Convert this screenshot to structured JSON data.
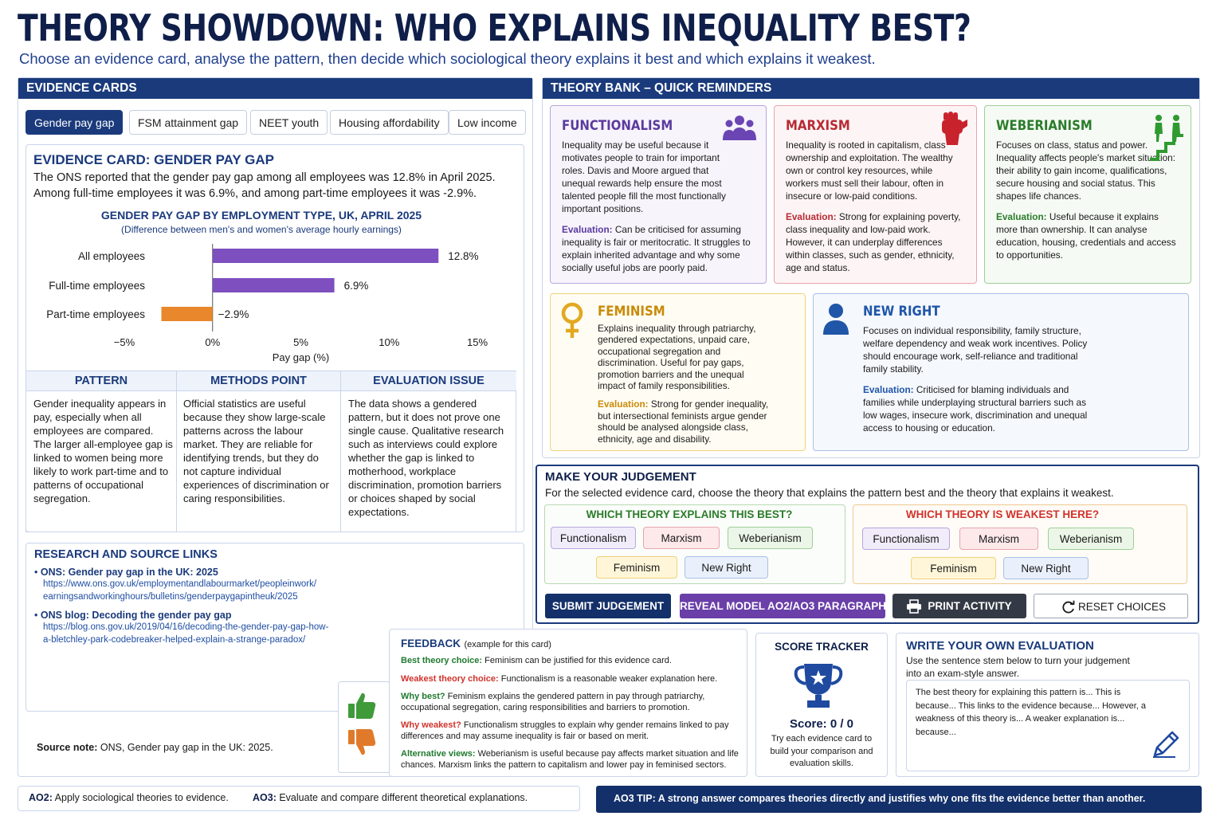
{
  "header": {
    "title": "THEORY SHOWDOWN: WHO EXPLAINS INEQUALITY BEST?",
    "subtitle": "Choose an evidence card, analyse the pattern, then decide which sociological theory explains it best and which explains it weakest."
  },
  "evidence": {
    "panel_title": "EVIDENCE CARDS",
    "tabs": [
      "Gender pay gap",
      "FSM attainment gap",
      "NEET youth",
      "Housing affordability",
      "Low income"
    ],
    "card_title": "EVIDENCE CARD: GENDER PAY GAP",
    "card_text_1": "The ONS reported that the gender pay gap among all employees was 12.8% in April 2025.",
    "card_text_2": "Among full-time employees it was 6.9%, and among part-time employees it was -2.9%.",
    "pattern_head": "PATTERN",
    "pattern_text": "Gender inequality appears in pay, especially when all employees are compared. The larger all-employee gap is linked to women being more likely to work part-time and to patterns of occupational segregation.",
    "methods_head": "METHODS POINT",
    "methods_text": "Official statistics are useful because they show large-scale patterns across the labour market. They are reliable for identifying trends, but they do not capture individual experiences of discrimination or caring responsibilities.",
    "evaluation_head": "EVALUATION ISSUE",
    "evaluation_text": "The data shows a gendered pattern, but it does not prove one single cause. Qualitative research such as interviews could explore whether the gap is linked to motherhood, workplace discrimination, promotion barriers or choices shaped by social expectations."
  },
  "chart_data": {
    "type": "bar",
    "orientation": "horizontal",
    "title": "GENDER PAY GAP BY EMPLOYMENT TYPE, UK, APRIL 2025",
    "subtitle": "(Difference between men's and women's average hourly earnings)",
    "categories": [
      "All employees",
      "Full-time employees",
      "Part-time employees"
    ],
    "values": [
      12.8,
      6.9,
      -2.9
    ],
    "value_labels": [
      "12.8%",
      "6.9%",
      "−2.9%"
    ],
    "xlabel": "Pay gap (%)",
    "xlim": [
      -5,
      15
    ],
    "xticks": [
      -5,
      0,
      5,
      10,
      15
    ],
    "xtick_labels": [
      "−5%",
      "0%",
      "5%",
      "10%",
      "15%"
    ],
    "colors": {
      "positive": "#7e4fbf",
      "negative": "#e8872b"
    },
    "grid": false
  },
  "sources": {
    "title": "RESEARCH AND SOURCE LINKS",
    "items": [
      {
        "label": "ONS: Gender pay gap in the UK: 2025",
        "url_1": "https://www.ons.gov.uk/employmentandlabourmarket/peopleinwork/",
        "url_2": "earningsandworkinghours/bulletins/genderpaygapintheuk/2025"
      },
      {
        "label": "ONS blog: Decoding the gender pay gap",
        "url_1": "https://blog.ons.gov.uk/2019/04/16/decoding-the-gender-pay-gap-how-",
        "url_2": "a-bletchley-park-codebreaker-helped-explain-a-strange-paradox/"
      }
    ],
    "note_label": "Source note:",
    "note_text": " ONS, Gender pay gap in the UK: 2025."
  },
  "theory_bank": {
    "title": "THEORY BANK – QUICK REMINDERS",
    "eval_label": "Evaluation:",
    "functionalism": {
      "name": "FUNCTIONALISM",
      "text": "Inequality may be useful because it motivates people to train for important roles. Davis and Moore argued that unequal rewards help ensure the most talented people fill the most functionally important positions.",
      "eval": " Can be criticised for assuming inequality is fair or meritocratic. It struggles to explain inherited advantage and why some socially useful jobs are poorly paid."
    },
    "marxism": {
      "name": "MARXISM",
      "text": "Inequality is rooted in capitalism, class ownership and exploitation. The wealthy own or control key resources, while workers must sell their labour, often in insecure or low-paid conditions.",
      "eval": " Strong for explaining poverty, class inequality and low-paid work. However, it can underplay differences within classes, such as gender, ethnicity, age and status."
    },
    "weberianism": {
      "name": "WEBERIANISM",
      "text": "Focuses on class, status and power. Inequality affects people's market situation: their ability to gain income, qualifications, secure housing and social status. This shapes life chances.",
      "eval": " Useful because it explains more than ownership. It can analyse education, housing, credentials and access to opportunities."
    },
    "feminism": {
      "name": "FEMINISM",
      "text": "Explains inequality through patriarchy, gendered expectations, unpaid care, occupational segregation and discrimination. Useful for pay gaps, promotion barriers and the unequal impact of family responsibilities.",
      "eval": " Strong for gender inequality, but intersectional feminists argue gender should be analysed alongside class, ethnicity, age and disability."
    },
    "new_right": {
      "name": "NEW RIGHT",
      "text": "Focuses on individual responsibility, family structure, welfare dependency and weak work incentives. Policy should encourage work, self-reliance and traditional family stability.",
      "eval": " Criticised for blaming individuals and families while underplaying structural barriers such as low wages, insecure work, discrimination and unequal access to housing or education."
    }
  },
  "judgement": {
    "title": "MAKE YOUR JUDGEMENT",
    "instruction": "For the selected evidence card, choose the theory that explains the pattern best and the theory that explains it weakest.",
    "best_head": "WHICH THEORY EXPLAINS THIS BEST?",
    "weak_head": "WHICH THEORY IS WEAKEST HERE?",
    "options": [
      "Functionalism",
      "Marxism",
      "Weberianism",
      "Feminism",
      "New Right"
    ],
    "buttons": {
      "submit": "SUBMIT JUDGEMENT",
      "reveal": "REVEAL MODEL AO2/AO3 PARAGRAPH",
      "print": "PRINT ACTIVITY",
      "reset": "RESET CHOICES"
    }
  },
  "feedback": {
    "title": "FEEDBACK",
    "subtitle": "(example for this card)",
    "lines": [
      {
        "label": "Best theory choice:",
        "text": " Feminism can be justified for this evidence card.",
        "color": "#1f7a2e"
      },
      {
        "label": "Weakest theory choice:",
        "text": " Functionalism is a reasonable weaker explanation here.",
        "color": "#d0322b"
      },
      {
        "label": "Why best?",
        "text": " Feminism explains the gendered pattern in pay through patriarchy, occupational segregation, caring responsibilities and barriers to promotion.",
        "color": "#1f7a2e"
      },
      {
        "label": "Why weakest?",
        "text": " Functionalism struggles to explain why gender remains linked to pay differences and may assume inequality is fair or based on merit.",
        "color": "#d0322b"
      },
      {
        "label": "Alternative views:",
        "text": " Weberianism is useful because pay affects market situation and life chances. Marxism links the pattern to capitalism and lower pay in feminised sectors.",
        "color": "#1f7a2e"
      }
    ]
  },
  "score": {
    "title": "SCORE TRACKER",
    "score": "Score: 0 / 0",
    "text": "Try each evidence card to build your comparison and evaluation skills."
  },
  "write": {
    "title": "WRITE YOUR OWN EVALUATION",
    "instruction": "Use the sentence stem below to turn your judgement into an exam-style answer.",
    "stem": "The best theory for explaining this pattern is... This is because... This links to the evidence because... However, a weakness of this theory is... A weaker explanation is... because..."
  },
  "footer": {
    "ao2_label": "AO2:",
    "ao2_text": " Apply sociological theories to evidence.",
    "ao3_label": "AO3:",
    "ao3_text": " Evaluate and compare different theoretical explanations.",
    "tip_label": "AO3 TIP:",
    "tip_text": " A strong answer compares theories directly and justifies why one fits the evidence better than another."
  }
}
